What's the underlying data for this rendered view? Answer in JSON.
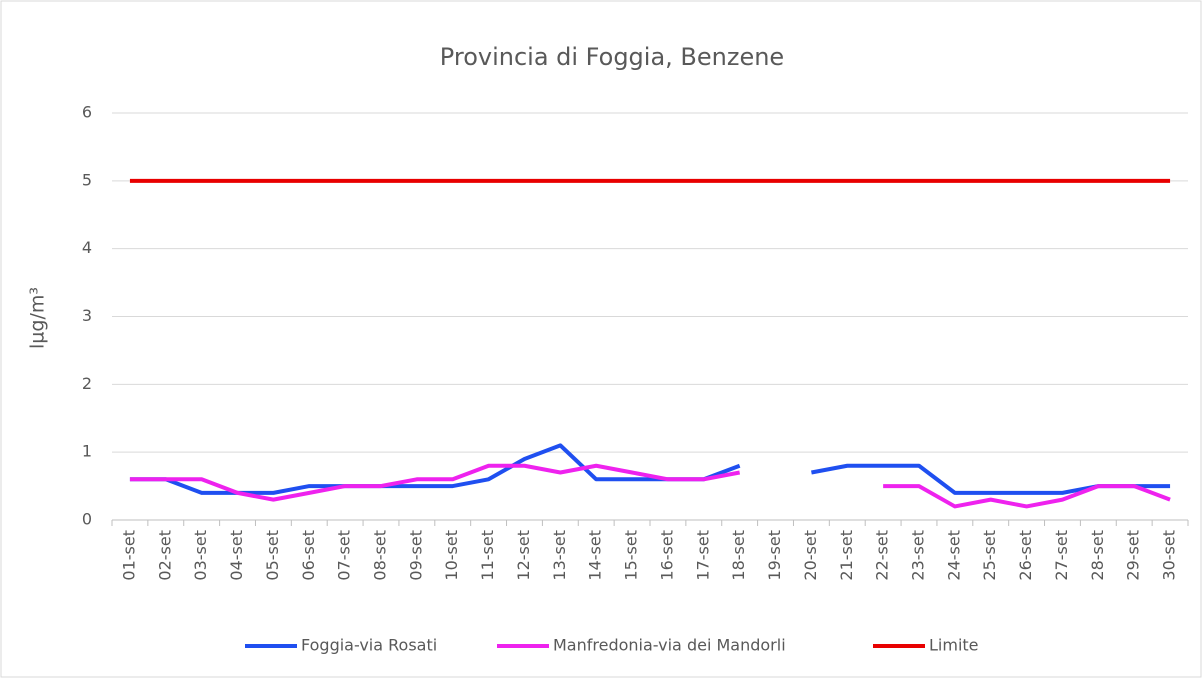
{
  "chart_data": {
    "type": "line",
    "title": "Provincia di Foggia, Benzene",
    "y_label": "lµg/m³",
    "categories": [
      "01-set",
      "02-set",
      "03-set",
      "04-set",
      "05-set",
      "06-set",
      "07-set",
      "08-set",
      "09-set",
      "10-set",
      "11-set",
      "12-set",
      "13-set",
      "14-set",
      "15-set",
      "16-set",
      "17-set",
      "18-set",
      "19-set",
      "20-set",
      "21-set",
      "22-set",
      "23-set",
      "24-set",
      "25-set",
      "26-set",
      "27-set",
      "28-set",
      "29-set",
      "30-set"
    ],
    "series": [
      {
        "name": "Foggia-via Rosati",
        "color": "#1f4ff0",
        "values": [
          0.6,
          0.6,
          0.4,
          0.4,
          0.4,
          0.5,
          0.5,
          0.5,
          0.5,
          0.5,
          0.6,
          0.9,
          1.1,
          0.6,
          0.6,
          0.6,
          0.6,
          0.8,
          null,
          0.7,
          0.8,
          0.8,
          0.8,
          0.4,
          0.4,
          0.4,
          0.4,
          0.5,
          0.5,
          0.5
        ]
      },
      {
        "name": "Manfredonia-via dei Mandorli",
        "color": "#ee22ee",
        "values": [
          0.6,
          0.6,
          0.6,
          0.4,
          0.3,
          0.4,
          0.5,
          0.5,
          0.6,
          0.6,
          0.8,
          0.8,
          0.7,
          0.8,
          0.7,
          0.6,
          0.6,
          0.7,
          null,
          null,
          null,
          0.5,
          0.5,
          0.2,
          0.3,
          0.2,
          0.3,
          0.5,
          0.5,
          0.3
        ]
      },
      {
        "name": "Limite",
        "color": "#e80000",
        "values": [
          5,
          5,
          5,
          5,
          5,
          5,
          5,
          5,
          5,
          5,
          5,
          5,
          5,
          5,
          5,
          5,
          5,
          5,
          5,
          5,
          5,
          5,
          5,
          5,
          5,
          5,
          5,
          5,
          5,
          5
        ]
      }
    ],
    "ylim": [
      0,
      6
    ],
    "yticks": [
      0,
      1,
      2,
      3,
      4,
      5,
      6
    ],
    "grid": true,
    "legend": "bottom"
  }
}
